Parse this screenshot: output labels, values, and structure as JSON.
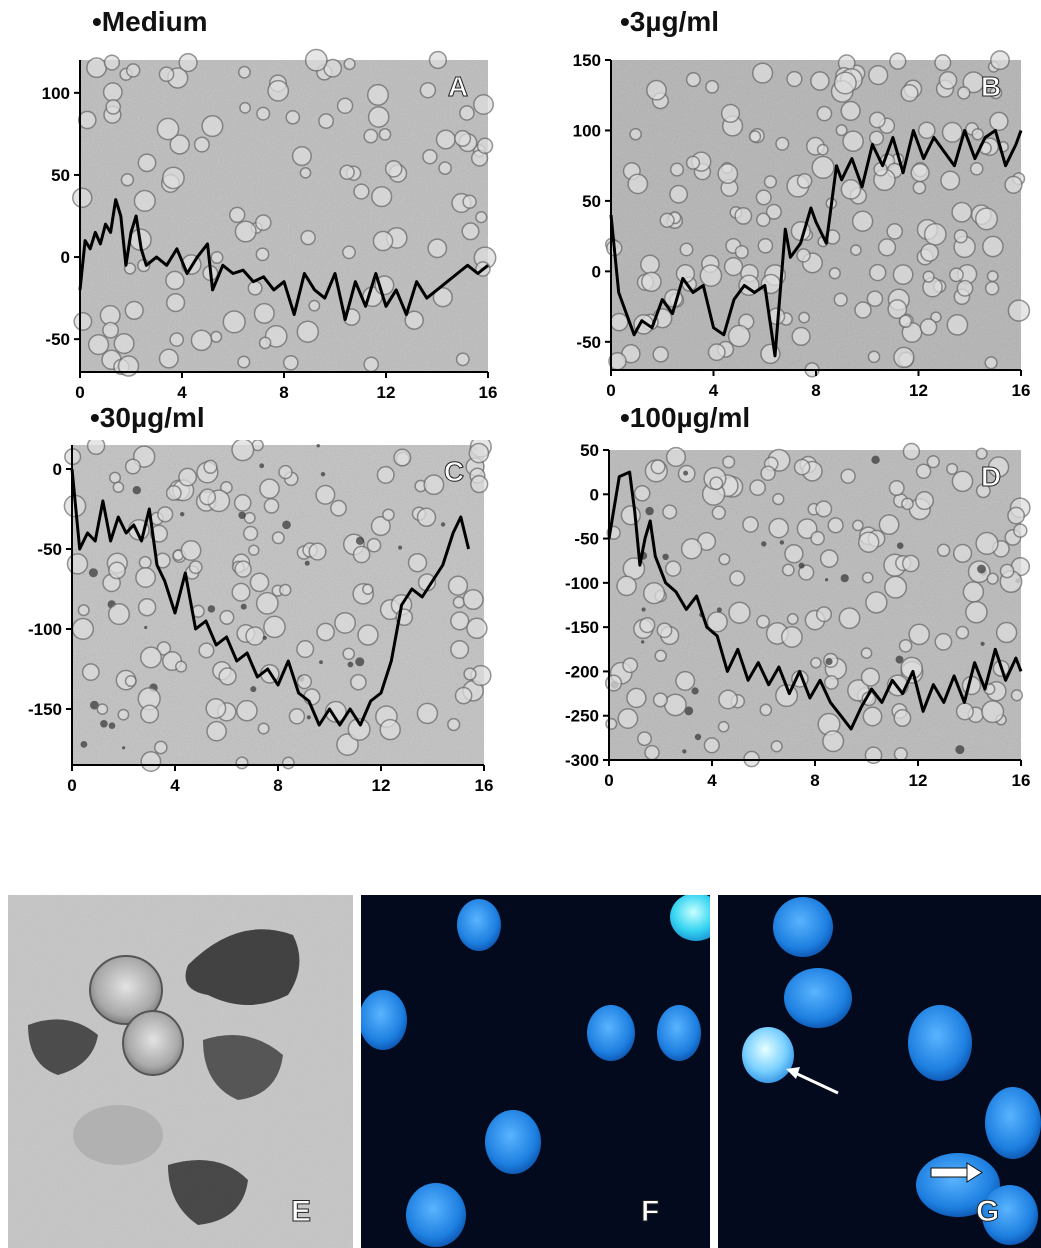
{
  "figure": {
    "charts": [
      {
        "title": "•Medium",
        "label": "A"
      },
      {
        "title": "•3µg/ml",
        "label": "B"
      },
      {
        "title": "•30µg/ml",
        "label": "C"
      },
      {
        "title": "•100µg/ml",
        "label": "D"
      }
    ],
    "bottom_panels": [
      {
        "label": "E",
        "kind": "brightfield micrograph",
        "background": "#c8c8c8"
      },
      {
        "label": "F",
        "kind": "fluorescence micrograph",
        "background": "#040a20",
        "nucleus_color": "#2a8ff0"
      },
      {
        "label": "G",
        "kind": "fluorescence micrograph",
        "background": "#040a20",
        "nucleus_color": "#2a8ff0"
      }
    ]
  },
  "chart_data": [
    {
      "type": "line",
      "title": "•Medium",
      "panel_label": "A",
      "xlim": [
        0,
        16
      ],
      "ylim": [
        -70,
        120
      ],
      "x_ticks": [
        0,
        4,
        8,
        12,
        16
      ],
      "y_ticks": [
        -50,
        0,
        50,
        100
      ],
      "x": [
        0,
        0.2,
        0.4,
        0.6,
        0.8,
        1.0,
        1.2,
        1.4,
        1.6,
        1.8,
        2.0,
        2.2,
        2.4,
        2.6,
        3.0,
        3.4,
        3.8,
        4.2,
        4.6,
        5.0,
        5.2,
        5.6,
        6.0,
        6.4,
        6.8,
        7.2,
        7.6,
        8.0,
        8.4,
        8.8,
        9.2,
        9.6,
        10.0,
        10.4,
        10.8,
        11.2,
        11.6,
        12.0,
        12.4,
        12.8,
        13.2,
        13.6,
        14.0,
        14.4,
        14.8,
        15.2,
        15.6,
        16.0
      ],
      "y": [
        -20,
        10,
        5,
        15,
        8,
        20,
        15,
        35,
        25,
        -5,
        15,
        25,
        5,
        -5,
        0,
        -5,
        5,
        -10,
        0,
        8,
        -20,
        -5,
        -10,
        -8,
        -15,
        -12,
        -20,
        -15,
        -35,
        -10,
        -20,
        -25,
        -10,
        -38,
        -15,
        -30,
        -10,
        -30,
        -20,
        -35,
        -15,
        -25,
        -20,
        -15,
        -10,
        -5,
        -10,
        -5
      ]
    },
    {
      "type": "line",
      "title": "•3µg/ml",
      "panel_label": "B",
      "xlim": [
        0,
        16
      ],
      "ylim": [
        -70,
        150
      ],
      "x_ticks": [
        0,
        4,
        8,
        12,
        16
      ],
      "y_ticks": [
        -50,
        0,
        50,
        100,
        150
      ],
      "x": [
        0,
        0.3,
        0.6,
        0.9,
        1.2,
        1.6,
        2.0,
        2.4,
        2.8,
        3.2,
        3.6,
        4.0,
        4.4,
        4.8,
        5.2,
        5.6,
        6.0,
        6.4,
        6.8,
        7.0,
        7.4,
        7.8,
        8.0,
        8.4,
        8.8,
        9.0,
        9.4,
        9.8,
        10.2,
        10.6,
        11.0,
        11.4,
        11.8,
        12.2,
        12.6,
        13.0,
        13.4,
        13.8,
        14.2,
        14.6,
        15.0,
        15.4,
        15.8,
        16.0
      ],
      "y": [
        40,
        -15,
        -30,
        -45,
        -35,
        -40,
        -20,
        -30,
        -5,
        -15,
        -10,
        -40,
        -45,
        -20,
        -10,
        -15,
        -10,
        -60,
        30,
        10,
        20,
        45,
        35,
        20,
        75,
        65,
        80,
        60,
        90,
        75,
        95,
        70,
        100,
        80,
        95,
        85,
        75,
        100,
        80,
        95,
        100,
        75,
        90,
        100
      ]
    },
    {
      "type": "line",
      "title": "•30µg/ml",
      "panel_label": "C",
      "xlim": [
        0,
        16
      ],
      "ylim": [
        -185,
        15
      ],
      "x_ticks": [
        0,
        4,
        8,
        12,
        16
      ],
      "y_ticks": [
        -150,
        -100,
        -50,
        0
      ],
      "x": [
        0,
        0.3,
        0.6,
        0.9,
        1.2,
        1.5,
        1.8,
        2.1,
        2.4,
        2.7,
        3.0,
        3.3,
        3.6,
        4.0,
        4.4,
        4.8,
        5.2,
        5.6,
        6.0,
        6.4,
        6.8,
        7.2,
        7.6,
        8.0,
        8.4,
        8.8,
        9.2,
        9.6,
        10.0,
        10.4,
        10.8,
        11.2,
        11.6,
        12.0,
        12.4,
        12.8,
        13.2,
        13.6,
        14.0,
        14.4,
        14.8,
        15.1,
        15.4
      ],
      "y": [
        0,
        -50,
        -40,
        -45,
        -20,
        -45,
        -30,
        -40,
        -35,
        -45,
        -25,
        -60,
        -70,
        -90,
        -65,
        -100,
        -95,
        -110,
        -105,
        -120,
        -115,
        -130,
        -125,
        -135,
        -120,
        -140,
        -145,
        -160,
        -150,
        -160,
        -150,
        -160,
        -145,
        -140,
        -120,
        -85,
        -75,
        -80,
        -70,
        -60,
        -40,
        -30,
        -50
      ]
    },
    {
      "type": "line",
      "title": "•100µg/ml",
      "panel_label": "D",
      "xlim": [
        0,
        16
      ],
      "ylim": [
        -300,
        50
      ],
      "x_ticks": [
        0,
        4,
        8,
        12,
        16
      ],
      "y_ticks": [
        -300,
        -250,
        -200,
        -150,
        -100,
        -50,
        0,
        50
      ],
      "x": [
        0,
        0.4,
        0.8,
        1.0,
        1.2,
        1.4,
        1.6,
        1.8,
        2.2,
        2.6,
        3.0,
        3.4,
        3.8,
        4.2,
        4.6,
        5.0,
        5.4,
        5.8,
        6.2,
        6.6,
        7.0,
        7.4,
        7.8,
        8.2,
        8.6,
        9.0,
        9.4,
        9.8,
        10.2,
        10.6,
        11.0,
        11.4,
        11.8,
        12.2,
        12.6,
        13.0,
        13.4,
        13.8,
        14.2,
        14.6,
        15.0,
        15.4,
        15.8,
        16.0
      ],
      "y": [
        -50,
        20,
        25,
        -20,
        -80,
        -50,
        -30,
        -70,
        -100,
        -110,
        -130,
        -115,
        -150,
        -160,
        -200,
        -175,
        -210,
        -190,
        -215,
        -195,
        -225,
        -200,
        -230,
        -210,
        -235,
        -250,
        -265,
        -240,
        -220,
        -235,
        -210,
        -225,
        -200,
        -245,
        -215,
        -235,
        -205,
        -235,
        -190,
        -220,
        -175,
        -210,
        -185,
        -200
      ]
    }
  ]
}
